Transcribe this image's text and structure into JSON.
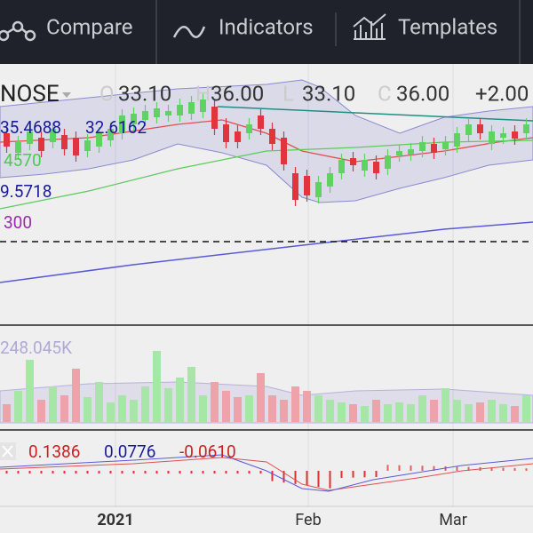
{
  "toolbar": {
    "items": [
      {
        "label": "Compare"
      },
      {
        "label": "Indicators"
      },
      {
        "label": "Templates"
      }
    ]
  },
  "legend": {
    "symbol": "NOSE",
    "ohlc": [
      {
        "key": "O",
        "value": "33.10"
      },
      {
        "key": "H",
        "value": "36.00"
      },
      {
        "key": "L",
        "value": "33.10"
      },
      {
        "key": "C",
        "value": "36.00"
      }
    ],
    "change": "+2.00",
    "bands": [
      "35.4688",
      "32.6162"
    ],
    "ma": [
      "4570",
      "9.5718",
      "300"
    ]
  },
  "volume": {
    "label": "248.045K"
  },
  "macd": {
    "values": [
      "0.1386",
      "0.0776",
      "-0.0610"
    ]
  },
  "x_axis": {
    "labels": [
      "2021",
      "Feb",
      "Mar"
    ]
  }
}
